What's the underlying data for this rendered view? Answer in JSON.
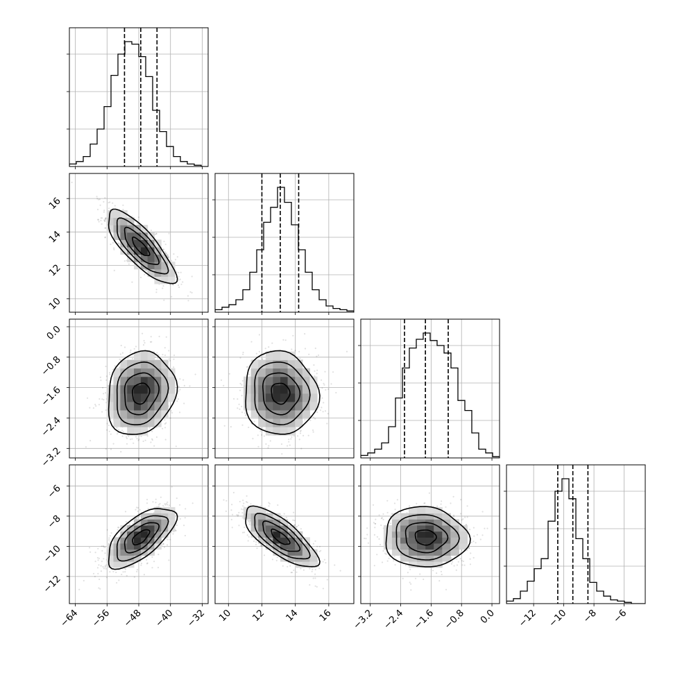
{
  "chart_data": {
    "type": "corner",
    "grid": true,
    "parameters": [
      {
        "ticks": [
          "−64",
          "−56",
          "−48",
          "−40",
          "−32"
        ],
        "tick_values": [
          -64,
          -56,
          -48,
          -40,
          -32
        ],
        "range": [
          -65.5,
          -30.5
        ],
        "mean": -47.5,
        "sd": 4.3,
        "quantiles": [
          -51.6,
          -47.5,
          -43.4
        ],
        "histogram": {
          "edges_range": [
            -65.5,
            -30.5
          ],
          "bins": 20,
          "counts": [
            0.02,
            0.04,
            0.08,
            0.18,
            0.3,
            0.48,
            0.73,
            0.9,
            1.0,
            0.98,
            0.88,
            0.72,
            0.45,
            0.28,
            0.16,
            0.08,
            0.04,
            0.02,
            0.01,
            0.0
          ]
        }
      },
      {
        "ticks": [
          "10",
          "12",
          "14",
          "16"
        ],
        "tick_values": [
          10,
          12,
          14,
          16
        ],
        "range": [
          9.2,
          17.5
        ],
        "mean": 13.1,
        "sd": 1.1,
        "quantiles": [
          12.0,
          13.1,
          14.2
        ],
        "histogram": {
          "edges_range": [
            9.2,
            17.5
          ],
          "bins": 20,
          "counts": [
            0.02,
            0.04,
            0.06,
            0.1,
            0.18,
            0.32,
            0.5,
            0.72,
            0.84,
            1.0,
            0.88,
            0.7,
            0.5,
            0.32,
            0.18,
            0.1,
            0.05,
            0.03,
            0.02,
            0.01
          ]
        }
      },
      {
        "ticks": [
          "−3.2",
          "−2.4",
          "−1.6",
          "−0.8",
          "0.0"
        ],
        "tick_values": [
          -3.2,
          -2.4,
          -1.6,
          -0.8,
          0.0
        ],
        "range": [
          -3.45,
          0.2
        ],
        "mean": -1.75,
        "sd": 0.55,
        "quantiles": [
          -2.3,
          -1.75,
          -1.15
        ],
        "histogram": {
          "edges_range": [
            -3.45,
            0.2
          ],
          "bins": 20,
          "counts": [
            0.02,
            0.04,
            0.07,
            0.12,
            0.25,
            0.48,
            0.72,
            0.88,
            0.95,
            1.0,
            0.94,
            0.9,
            0.84,
            0.72,
            0.46,
            0.38,
            0.2,
            0.07,
            0.04,
            0.01
          ]
        }
      },
      {
        "ticks": [
          "−12",
          "−10",
          "−8",
          "−6"
        ],
        "tick_values": [
          -12,
          -10,
          -8,
          -6
        ],
        "range": [
          -13.8,
          -4.6
        ],
        "mean": -9.4,
        "sd": 1.0,
        "quantiles": [
          -10.4,
          -9.4,
          -8.4
        ],
        "histogram": {
          "edges_range": [
            -13.8,
            -4.6
          ],
          "bins": 20,
          "counts": [
            0.02,
            0.04,
            0.1,
            0.18,
            0.28,
            0.36,
            0.66,
            0.9,
            1.0,
            0.84,
            0.52,
            0.36,
            0.17,
            0.1,
            0.06,
            0.03,
            0.02,
            0.01,
            0.0,
            0.0
          ]
        }
      }
    ],
    "correlations": {
      "1-0": -0.8,
      "2-0": 0.15,
      "2-1": -0.05,
      "3-0": 0.65,
      "3-1": -0.75,
      "3-2": -0.05
    }
  }
}
